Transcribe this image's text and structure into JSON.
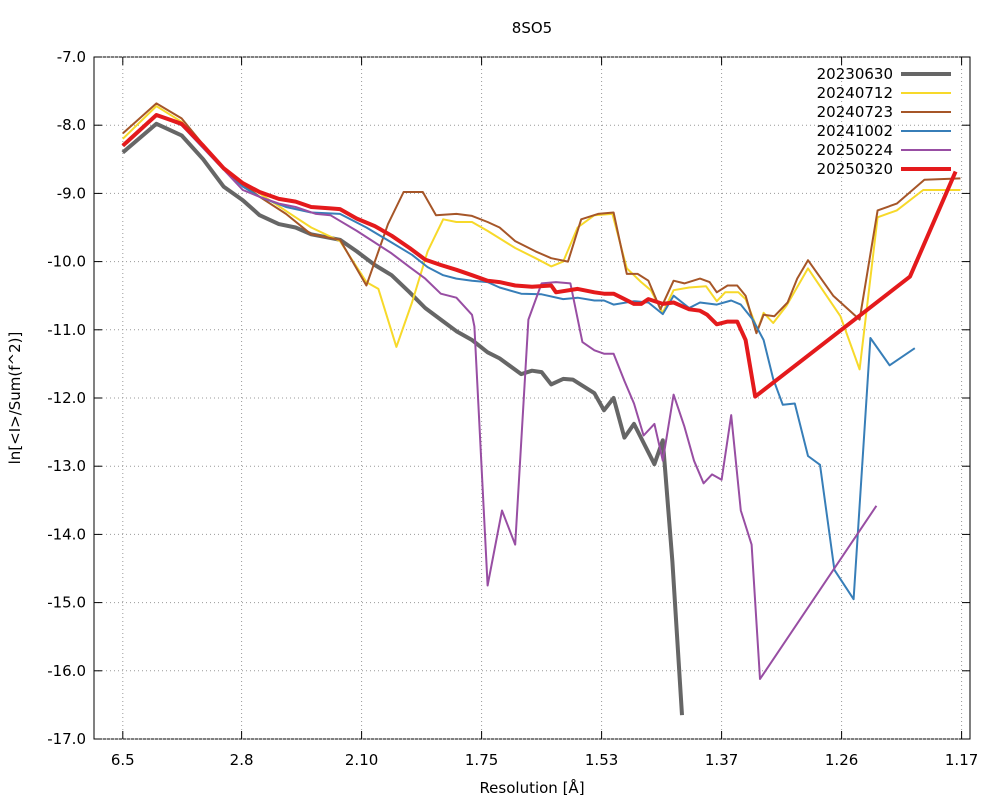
{
  "chart_data": {
    "type": "line",
    "title": "8SO5",
    "x_label": "Resolution [Å]",
    "y_label": "ln[<I>/Sum(f^2)]",
    "xlim": [
      0,
      0.73
    ],
    "ylim": [
      -17,
      -7
    ],
    "xticks": [
      {
        "value": 0.024,
        "label": "6.5"
      },
      {
        "value": 0.123,
        "label": "2.8"
      },
      {
        "value": 0.223,
        "label": "2.10"
      },
      {
        "value": 0.323,
        "label": "1.75"
      },
      {
        "value": 0.423,
        "label": "1.53"
      },
      {
        "value": 0.523,
        "label": "1.37"
      },
      {
        "value": 0.623,
        "label": "1.26"
      },
      {
        "value": 0.723,
        "label": "1.17"
      }
    ],
    "yticks": [
      {
        "value": -7,
        "label": "-7.0"
      },
      {
        "value": -8,
        "label": "-8.0"
      },
      {
        "value": -9,
        "label": "-9.0"
      },
      {
        "value": -10,
        "label": "-10.0"
      },
      {
        "value": -11,
        "label": "-11.0"
      },
      {
        "value": -12,
        "label": "-12.0"
      },
      {
        "value": -13,
        "label": "-13.0"
      },
      {
        "value": -14,
        "label": "-14.0"
      },
      {
        "value": -15,
        "label": "-15.0"
      },
      {
        "value": -16,
        "label": "-16.0"
      },
      {
        "value": -17,
        "label": "-17.0"
      }
    ],
    "grid": true,
    "legend": "top-right",
    "series": [
      {
        "name": "20230630",
        "color": "#666666",
        "width": 4,
        "x": [
          0.024,
          0.052,
          0.073,
          0.091,
          0.108,
          0.124,
          0.138,
          0.154,
          0.168,
          0.181,
          0.205,
          0.219,
          0.234,
          0.248,
          0.263,
          0.276,
          0.289,
          0.302,
          0.315,
          0.328,
          0.338,
          0.356,
          0.365,
          0.373,
          0.381,
          0.391,
          0.399,
          0.417,
          0.425,
          0.433,
          0.442,
          0.45,
          0.467,
          0.474,
          0.482,
          0.49
        ],
        "values": [
          -8.4,
          -7.98,
          -8.15,
          -8.5,
          -8.9,
          -9.1,
          -9.32,
          -9.45,
          -9.5,
          -9.6,
          -9.68,
          -9.85,
          -10.05,
          -10.2,
          -10.45,
          -10.68,
          -10.85,
          -11.02,
          -11.15,
          -11.33,
          -11.42,
          -11.65,
          -11.6,
          -11.62,
          -11.8,
          -11.72,
          -11.73,
          -11.93,
          -12.18,
          -12.0,
          -12.58,
          -12.38,
          -12.97,
          -12.62,
          -14.4,
          -16.65
        ]
      },
      {
        "name": "20240712",
        "color": "#f7d92a",
        "width": 2,
        "x": [
          0.024,
          0.052,
          0.073,
          0.108,
          0.138,
          0.168,
          0.181,
          0.205,
          0.227,
          0.237,
          0.252,
          0.265,
          0.278,
          0.291,
          0.302,
          0.315,
          0.328,
          0.351,
          0.368,
          0.381,
          0.391,
          0.403,
          0.417,
          0.432,
          0.444,
          0.456,
          0.464,
          0.474,
          0.483,
          0.496,
          0.51,
          0.519,
          0.526,
          0.537,
          0.543,
          0.553,
          0.558,
          0.566,
          0.577,
          0.595,
          0.622,
          0.638,
          0.653,
          0.669,
          0.691,
          0.722
        ],
        "values": [
          -8.2,
          -7.72,
          -7.95,
          -8.65,
          -9.0,
          -9.35,
          -9.5,
          -9.7,
          -10.3,
          -10.4,
          -11.25,
          -10.6,
          -9.85,
          -9.38,
          -9.42,
          -9.42,
          -9.55,
          -9.8,
          -9.95,
          -10.07,
          -10.0,
          -9.5,
          -9.32,
          -9.3,
          -10.1,
          -10.3,
          -10.42,
          -10.75,
          -10.42,
          -10.38,
          -10.36,
          -10.58,
          -10.45,
          -10.45,
          -10.55,
          -11.0,
          -10.75,
          -10.9,
          -10.65,
          -10.1,
          -10.8,
          -11.58,
          -9.35,
          -9.25,
          -8.95,
          -8.95
        ]
      },
      {
        "name": "20240723",
        "color": "#a65628",
        "width": 2,
        "x": [
          0.024,
          0.052,
          0.073,
          0.108,
          0.138,
          0.16,
          0.181,
          0.205,
          0.227,
          0.245,
          0.258,
          0.274,
          0.285,
          0.302,
          0.315,
          0.328,
          0.338,
          0.351,
          0.368,
          0.381,
          0.395,
          0.406,
          0.42,
          0.433,
          0.444,
          0.453,
          0.462,
          0.472,
          0.483,
          0.492,
          0.505,
          0.513,
          0.519,
          0.528,
          0.536,
          0.543,
          0.552,
          0.558,
          0.567,
          0.578,
          0.586,
          0.595,
          0.616,
          0.638,
          0.653,
          0.669,
          0.692,
          0.722
        ],
        "values": [
          -8.12,
          -7.68,
          -7.9,
          -8.65,
          -9.05,
          -9.3,
          -9.6,
          -9.68,
          -10.35,
          -9.45,
          -8.98,
          -8.98,
          -9.32,
          -9.3,
          -9.33,
          -9.42,
          -9.5,
          -9.7,
          -9.85,
          -9.95,
          -10.0,
          -9.38,
          -9.3,
          -9.28,
          -10.18,
          -10.18,
          -10.28,
          -10.7,
          -10.28,
          -10.32,
          -10.25,
          -10.3,
          -10.45,
          -10.35,
          -10.35,
          -10.5,
          -11.05,
          -10.78,
          -10.8,
          -10.6,
          -10.25,
          -9.98,
          -10.5,
          -10.85,
          -9.25,
          -9.15,
          -8.8,
          -8.78
        ]
      },
      {
        "name": "20241002",
        "color": "#377eb8",
        "width": 2,
        "x": [
          0.024,
          0.052,
          0.073,
          0.108,
          0.124,
          0.138,
          0.16,
          0.181,
          0.205,
          0.227,
          0.248,
          0.265,
          0.278,
          0.291,
          0.302,
          0.315,
          0.328,
          0.338,
          0.356,
          0.373,
          0.391,
          0.403,
          0.417,
          0.425,
          0.433,
          0.45,
          0.462,
          0.474,
          0.483,
          0.496,
          0.505,
          0.519,
          0.531,
          0.539,
          0.549,
          0.558,
          0.566,
          0.574,
          0.584,
          0.595,
          0.605,
          0.617,
          0.633,
          0.647,
          0.663,
          0.684
        ],
        "values": [
          -8.3,
          -7.85,
          -8.0,
          -8.65,
          -8.9,
          -9.05,
          -9.2,
          -9.28,
          -9.3,
          -9.5,
          -9.72,
          -9.9,
          -10.08,
          -10.2,
          -10.25,
          -10.28,
          -10.3,
          -10.38,
          -10.47,
          -10.48,
          -10.55,
          -10.53,
          -10.57,
          -10.57,
          -10.63,
          -10.58,
          -10.6,
          -10.77,
          -10.5,
          -10.68,
          -10.6,
          -10.63,
          -10.57,
          -10.63,
          -10.85,
          -11.15,
          -11.72,
          -12.1,
          -12.08,
          -12.85,
          -12.98,
          -14.52,
          -14.95,
          -11.12,
          -11.52,
          -11.27
        ]
      },
      {
        "name": "20250224",
        "color": "#984ea3",
        "width": 2,
        "x": [
          0.024,
          0.052,
          0.073,
          0.108,
          0.124,
          0.138,
          0.154,
          0.168,
          0.185,
          0.197,
          0.219,
          0.234,
          0.248,
          0.263,
          0.276,
          0.289,
          0.302,
          0.315,
          0.317,
          0.328,
          0.34,
          0.351,
          0.362,
          0.373,
          0.385,
          0.397,
          0.407,
          0.417,
          0.425,
          0.433,
          0.442,
          0.45,
          0.458,
          0.467,
          0.474,
          0.483,
          0.492,
          0.5,
          0.508,
          0.515,
          0.523,
          0.531,
          0.539,
          0.548,
          0.555,
          0.652
        ],
        "values": [
          -8.3,
          -7.85,
          -8.0,
          -8.65,
          -8.95,
          -9.05,
          -9.15,
          -9.2,
          -9.3,
          -9.32,
          -9.55,
          -9.72,
          -9.88,
          -10.08,
          -10.25,
          -10.47,
          -10.53,
          -10.78,
          -10.95,
          -14.75,
          -13.65,
          -14.15,
          -10.85,
          -10.32,
          -10.3,
          -10.32,
          -11.18,
          -11.3,
          -11.35,
          -11.35,
          -11.75,
          -12.08,
          -12.55,
          -12.38,
          -12.92,
          -11.95,
          -12.42,
          -12.92,
          -13.25,
          -13.12,
          -13.2,
          -12.25,
          -13.65,
          -14.15,
          -16.12,
          -13.58
        ]
      },
      {
        "name": "20250320",
        "color": "#e41a1c",
        "width": 4,
        "x": [
          0.024,
          0.052,
          0.073,
          0.091,
          0.108,
          0.124,
          0.138,
          0.154,
          0.168,
          0.181,
          0.197,
          0.205,
          0.219,
          0.234,
          0.248,
          0.263,
          0.276,
          0.289,
          0.302,
          0.315,
          0.328,
          0.338,
          0.351,
          0.365,
          0.381,
          0.385,
          0.403,
          0.417,
          0.425,
          0.433,
          0.442,
          0.45,
          0.456,
          0.462,
          0.474,
          0.483,
          0.496,
          0.505,
          0.511,
          0.519,
          0.528,
          0.536,
          0.543,
          0.551,
          0.68,
          0.718
        ],
        "values": [
          -8.3,
          -7.85,
          -7.98,
          -8.3,
          -8.63,
          -8.85,
          -8.98,
          -9.08,
          -9.12,
          -9.2,
          -9.22,
          -9.23,
          -9.37,
          -9.48,
          -9.62,
          -9.8,
          -9.97,
          -10.05,
          -10.12,
          -10.2,
          -10.28,
          -10.3,
          -10.35,
          -10.37,
          -10.35,
          -10.45,
          -10.4,
          -10.45,
          -10.47,
          -10.47,
          -10.55,
          -10.62,
          -10.62,
          -10.55,
          -10.62,
          -10.6,
          -10.7,
          -10.72,
          -10.78,
          -10.92,
          -10.88,
          -10.88,
          -11.15,
          -11.98,
          -10.22,
          -8.68
        ]
      }
    ]
  }
}
